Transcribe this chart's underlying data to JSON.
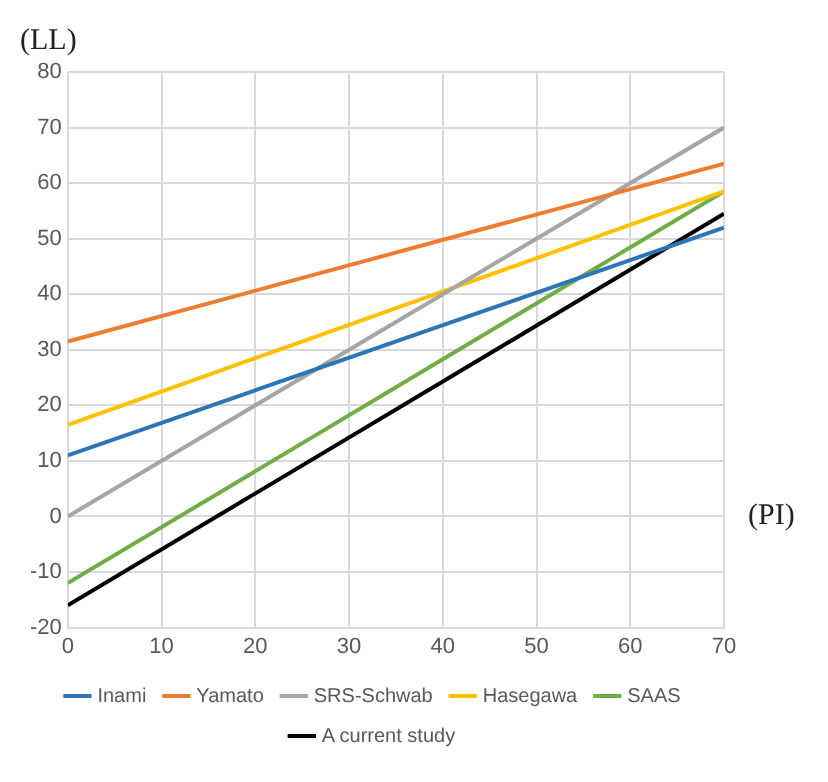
{
  "chart_data": {
    "type": "line",
    "xlabel": "(PI)",
    "ylabel": "(LL)",
    "x": [
      0,
      70
    ],
    "xlim": [
      0,
      70
    ],
    "xticks": [
      0,
      10,
      20,
      30,
      40,
      50,
      60,
      70
    ],
    "ylim": [
      -20,
      80
    ],
    "yticks": [
      -20,
      -10,
      0,
      10,
      20,
      30,
      40,
      50,
      60,
      70,
      80
    ],
    "grid": true,
    "legend": "bottom",
    "marker": "none",
    "line_style": "solid",
    "series": [
      {
        "name": "Inami",
        "color": "#2e75b6",
        "values": [
          11,
          52
        ]
      },
      {
        "name": "Yamato",
        "color": "#ed7d31",
        "values": [
          31.5,
          63.5
        ]
      },
      {
        "name": "SRS-Schwab",
        "color": "#a5a5a5",
        "values": [
          0,
          70
        ]
      },
      {
        "name": "Hasegawa",
        "color": "#ffc000",
        "values": [
          16.5,
          58.5
        ]
      },
      {
        "name": "SAAS",
        "color": "#70ad47",
        "values": [
          -12,
          58.5
        ]
      },
      {
        "name": "A current study",
        "color": "#000000",
        "values": [
          -16,
          54.5
        ]
      }
    ]
  }
}
